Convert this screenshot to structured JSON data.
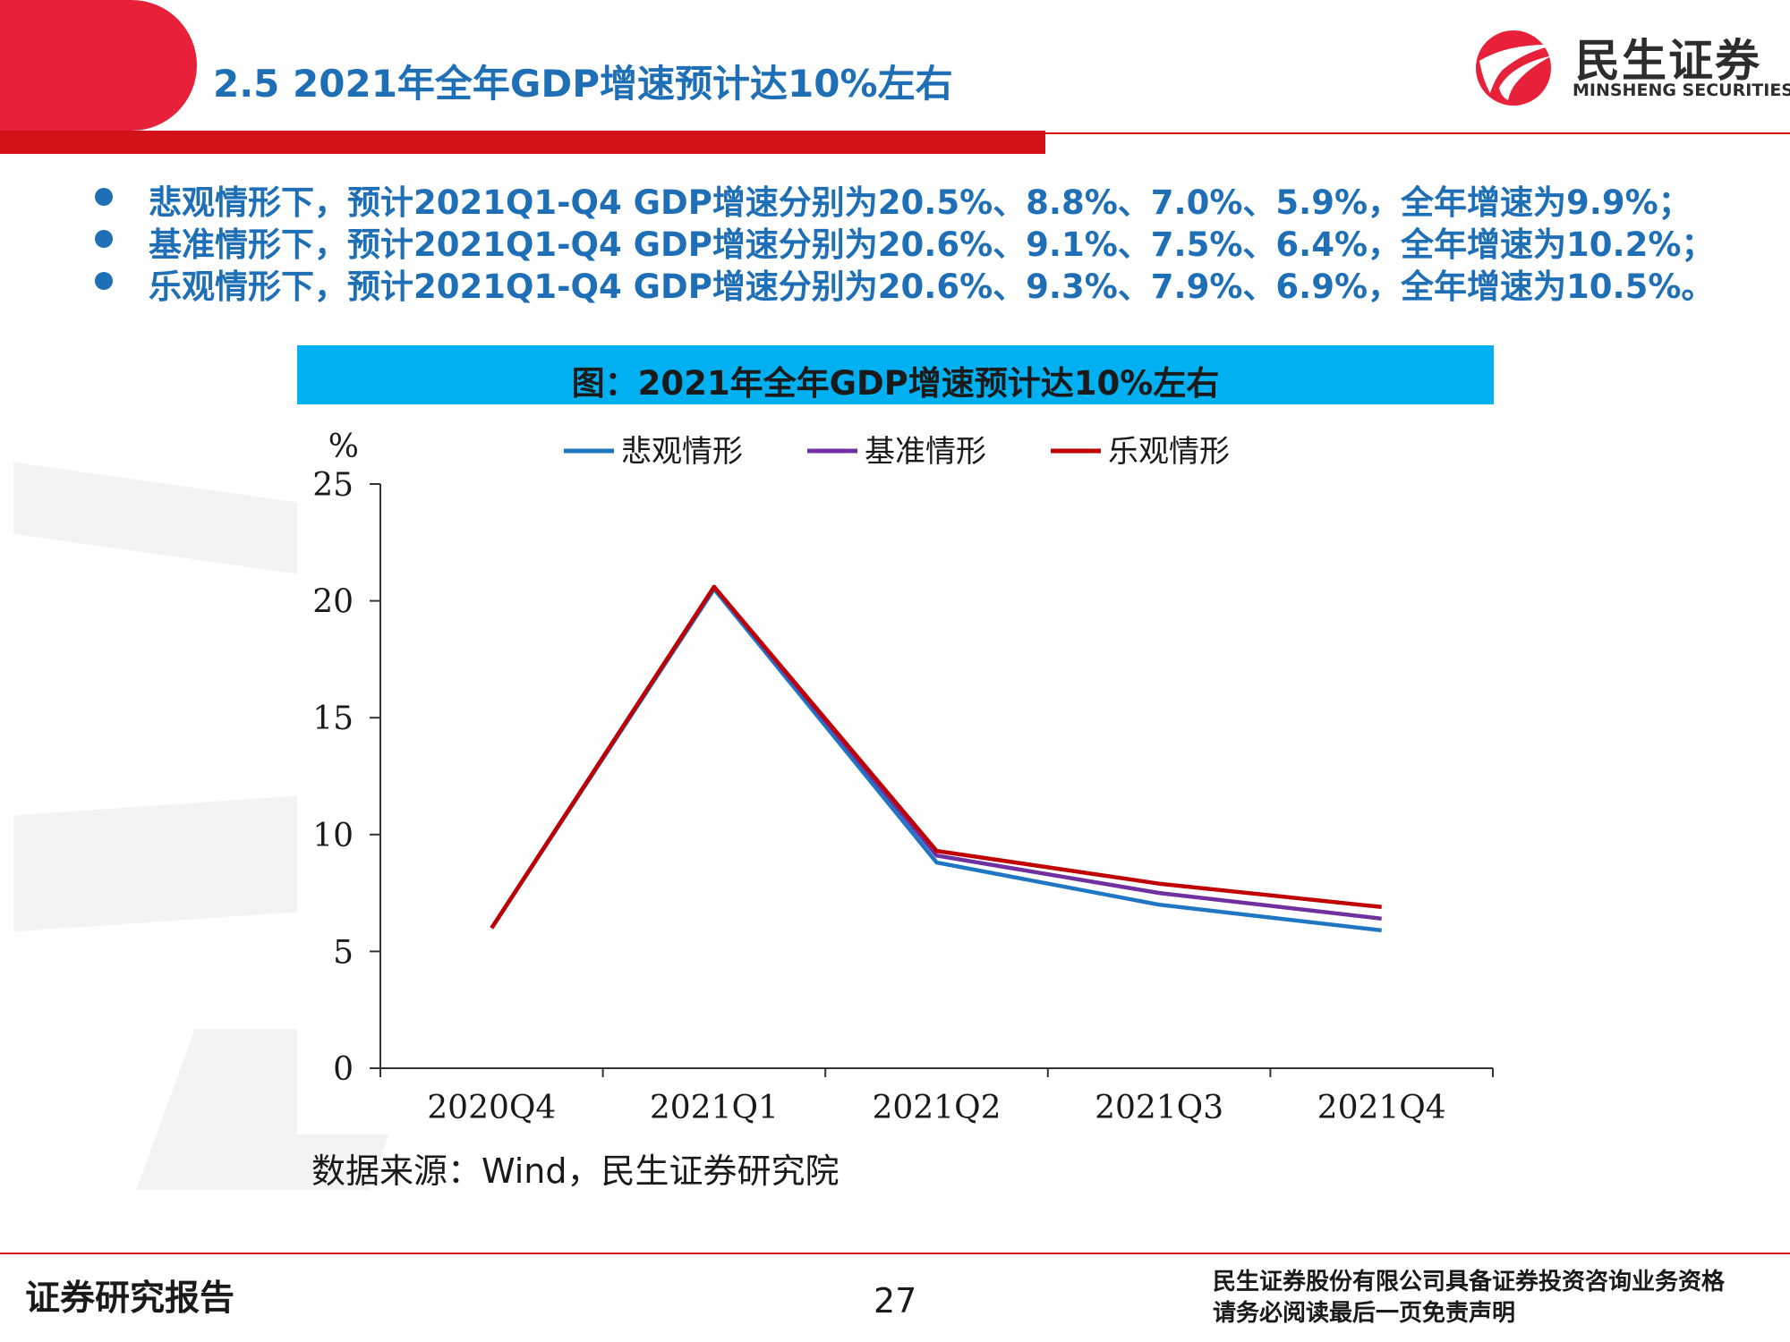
{
  "header": {
    "title": "2.5 2021年全年GDP增速预计达10%左右",
    "logo_cn": "民生证券",
    "logo_en": "MINSHENG SECURITIES",
    "accent": "#d31118",
    "title_color": "#1f6fb7"
  },
  "bullets": [
    "悲观情形下，预计2021Q1-Q4 GDP增速分别为20.5%、8.8%、7.0%、5.9%，全年增速为9.9%；",
    "基准情形下，预计2021Q1-Q4 GDP增速分别为20.6%、9.1%、7.5%、6.4%，全年增速为10.2%；",
    "乐观情形下，预计2021Q1-Q4 GDP增速分别为20.6%、9.3%、7.9%、6.9%，全年增速为10.5%。"
  ],
  "chart_title": "图：2021年全年GDP增速预计达10%左右",
  "chart_data": {
    "type": "line",
    "ylabel": "%",
    "categories": [
      "2020Q4",
      "2021Q1",
      "2021Q2",
      "2021Q3",
      "2021Q4"
    ],
    "ylim": [
      0,
      25
    ],
    "yticks": [
      0,
      5,
      10,
      15,
      20,
      25
    ],
    "grid": false,
    "legend": "top",
    "series": [
      {
        "name": "悲观情形",
        "color": "#1f77c4",
        "values": [
          6.0,
          20.5,
          8.8,
          7.0,
          5.9
        ]
      },
      {
        "name": "基准情形",
        "color": "#7030a0",
        "values": [
          6.0,
          20.6,
          9.1,
          7.5,
          6.4
        ]
      },
      {
        "name": "乐观情形",
        "color": "#c00000",
        "values": [
          6.0,
          20.6,
          9.3,
          7.9,
          6.9
        ]
      }
    ]
  },
  "source": "数据来源：Wind，民生证券研究院",
  "footer": {
    "left": "证券研究报告",
    "page": "27",
    "right_line1": "民生证券股份有限公司具备证券投资咨询业务资格",
    "right_line2": "请务必阅读最后一页免责声明"
  }
}
